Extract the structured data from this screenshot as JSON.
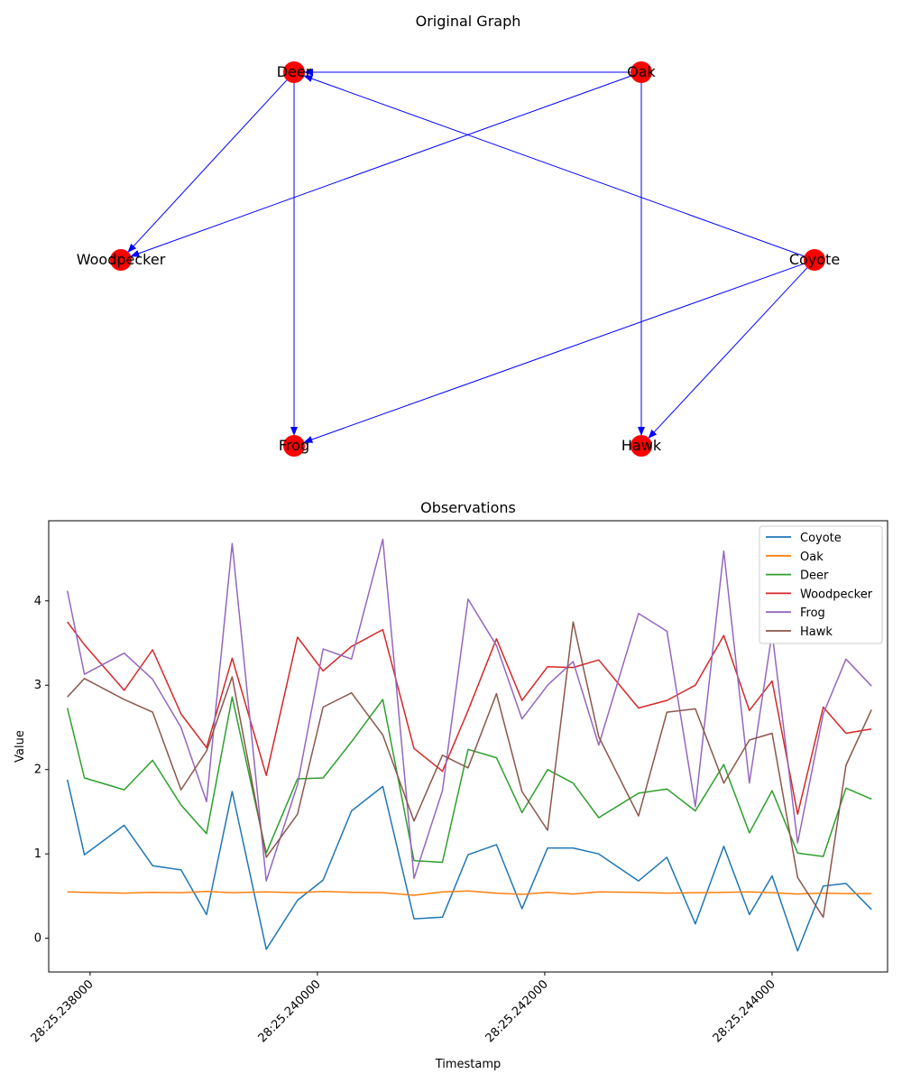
{
  "graph": {
    "title": "Original Graph",
    "node_color": "#ff0000",
    "edge_color": "#0000ff",
    "nodes": [
      {
        "id": "Deer",
        "label": "Deer"
      },
      {
        "id": "Oak",
        "label": "Oak"
      },
      {
        "id": "Woodpecker",
        "label": "Woodpecker"
      },
      {
        "id": "Coyote",
        "label": "Coyote"
      },
      {
        "id": "Frog",
        "label": "Frog"
      },
      {
        "id": "Hawk",
        "label": "Hawk"
      }
    ],
    "edges": [
      {
        "from": "Oak",
        "to": "Deer"
      },
      {
        "from": "Oak",
        "to": "Woodpecker"
      },
      {
        "from": "Oak",
        "to": "Hawk"
      },
      {
        "from": "Deer",
        "to": "Woodpecker"
      },
      {
        "from": "Deer",
        "to": "Frog"
      },
      {
        "from": "Coyote",
        "to": "Deer"
      },
      {
        "from": "Coyote",
        "to": "Frog"
      },
      {
        "from": "Coyote",
        "to": "Hawk"
      }
    ]
  },
  "chart_data": {
    "type": "line",
    "title": "Observations",
    "xlabel": "Timestamp",
    "ylabel": "Value",
    "xlim": [
      "28:25.237636",
      "28:25.245016"
    ],
    "ylim": [
      -0.4,
      4.95
    ],
    "xticks": [
      "28:25.238000",
      "28:25.240000",
      "28:25.242000",
      "28:25.244000"
    ],
    "yticks": [
      "0",
      "1",
      "2",
      "3",
      "4"
    ],
    "legend_position": "top-right",
    "grid": false,
    "x": [
      "28:25.237800",
      "28:25.237950",
      "28:25.238300",
      "28:25.238550",
      "28:25.238800",
      "28:25.239025",
      "28:25.239250",
      "28:25.239550",
      "28:25.239825",
      "28:25.240050",
      "28:25.240300",
      "28:25.240575",
      "28:25.240850",
      "28:25.241100",
      "28:25.241325",
      "28:25.241575",
      "28:25.241800",
      "28:25.242025",
      "28:25.242250",
      "28:25.242475",
      "28:25.242825",
      "28:25.243075",
      "28:25.243325",
      "28:25.243575",
      "28:25.243800",
      "28:25.244000",
      "28:25.244225",
      "28:25.244450",
      "28:25.244650",
      "28:25.244875"
    ],
    "series": [
      {
        "name": "Coyote",
        "color": "#1f77b4",
        "values": [
          1.88,
          0.99,
          1.34,
          0.86,
          0.81,
          0.28,
          1.74,
          -0.13,
          0.45,
          0.69,
          1.51,
          1.8,
          0.23,
          0.25,
          0.99,
          1.11,
          0.35,
          1.07,
          1.07,
          1.0,
          0.68,
          0.96,
          0.17,
          1.09,
          0.28,
          0.74,
          -0.15,
          0.62,
          0.65,
          0.34
        ]
      },
      {
        "name": "Oak",
        "color": "#ff7f0e",
        "values": [
          0.55,
          0.545,
          0.535,
          0.545,
          0.54,
          0.555,
          0.54,
          0.55,
          0.54,
          0.555,
          0.545,
          0.54,
          0.51,
          0.55,
          0.56,
          0.535,
          0.52,
          0.545,
          0.525,
          0.55,
          0.545,
          0.535,
          0.54,
          0.545,
          0.55,
          0.54,
          0.525,
          0.535,
          0.53,
          0.53
        ]
      },
      {
        "name": "Deer",
        "color": "#2ca02c",
        "values": [
          2.73,
          1.9,
          1.76,
          2.11,
          1.58,
          1.24,
          2.86,
          1.01,
          1.89,
          1.9,
          2.33,
          2.83,
          0.92,
          0.9,
          2.24,
          2.14,
          1.49,
          2.0,
          1.84,
          1.43,
          1.72,
          1.77,
          1.51,
          2.06,
          1.25,
          1.75,
          1.01,
          0.97,
          1.78,
          1.65
        ]
      },
      {
        "name": "Woodpecker",
        "color": "#d62728",
        "values": [
          3.75,
          3.48,
          2.94,
          3.42,
          2.66,
          2.26,
          3.32,
          1.93,
          3.57,
          3.17,
          3.46,
          3.66,
          2.25,
          1.98,
          2.7,
          3.55,
          2.82,
          3.22,
          3.21,
          3.3,
          2.73,
          2.82,
          3.0,
          3.59,
          2.7,
          3.05,
          1.47,
          2.74,
          2.43,
          2.48
        ]
      },
      {
        "name": "Frog",
        "color": "#9467bd",
        "values": [
          4.12,
          3.13,
          3.38,
          3.07,
          2.5,
          1.62,
          4.68,
          0.68,
          1.82,
          3.43,
          3.31,
          4.73,
          0.71,
          1.75,
          4.02,
          3.47,
          2.6,
          3.0,
          3.28,
          2.29,
          3.85,
          3.64,
          1.56,
          4.59,
          1.84,
          3.62,
          1.13,
          2.66,
          3.31,
          2.99
        ]
      },
      {
        "name": "Hawk",
        "color": "#8c564b",
        "values": [
          2.86,
          3.08,
          2.83,
          2.68,
          1.76,
          2.22,
          3.1,
          0.96,
          1.47,
          2.74,
          2.91,
          2.41,
          1.39,
          2.17,
          2.02,
          2.9,
          1.74,
          1.28,
          3.75,
          2.39,
          1.45,
          2.68,
          2.72,
          1.84,
          2.35,
          2.43,
          0.72,
          0.25,
          2.05,
          2.71
        ]
      }
    ]
  }
}
